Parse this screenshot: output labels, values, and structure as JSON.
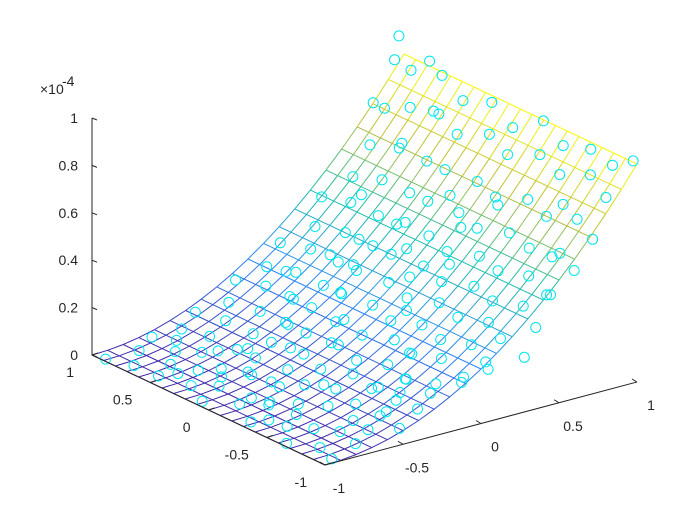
{
  "chart_data": {
    "type": "scatter",
    "subtype": "3d-scatter-with-fitted-mesh-surface",
    "title": "",
    "xlabel": "",
    "ylabel": "",
    "zlabel": "",
    "xlim": [
      -1,
      1
    ],
    "ylim": [
      -1,
      1
    ],
    "zlim": [
      0,
      1
    ],
    "z_exponent_label": "×10",
    "z_exponent_power": "-4",
    "x_ticks": [
      "-1",
      "-0.5",
      "0",
      "0.5",
      "1"
    ],
    "y_ticks": [
      "-1",
      "-0.5",
      "0",
      "0.5",
      "1"
    ],
    "z_ticks": [
      "0",
      "0.2",
      "0.4",
      "0.6",
      "0.8",
      "1"
    ],
    "surface_model": "z ≈ 0.92·((x+1)/2)^2 (×10^-4), nearly independent of y",
    "surface_grid_steps": 20,
    "surface_colormap": "parula",
    "marker": "circle",
    "marker_color": "#00e5ee",
    "grid": false,
    "legend": "none",
    "points": [
      {
        "x": -0.98,
        "y": 0.91,
        "z": 0.0
      },
      {
        "x": -0.94,
        "y": 0.72,
        "z": 0.01
      },
      {
        "x": -0.91,
        "y": 0.55,
        "z": 0.0
      },
      {
        "x": -0.88,
        "y": 0.31,
        "z": 0.01
      },
      {
        "x": -0.95,
        "y": 0.12,
        "z": 0.0
      },
      {
        "x": -0.86,
        "y": -0.08,
        "z": 0.02
      },
      {
        "x": -0.93,
        "y": -0.27,
        "z": 0.0
      },
      {
        "x": -0.84,
        "y": -0.46,
        "z": 0.01
      },
      {
        "x": -0.97,
        "y": -0.63,
        "z": 0.0
      },
      {
        "x": -0.89,
        "y": -0.81,
        "z": 0.01
      },
      {
        "x": -0.92,
        "y": -0.95,
        "z": 0.0
      },
      {
        "x": -0.81,
        "y": 0.85,
        "z": 0.02
      },
      {
        "x": -0.78,
        "y": 0.62,
        "z": 0.01
      },
      {
        "x": -0.76,
        "y": 0.41,
        "z": 0.03
      },
      {
        "x": -0.79,
        "y": 0.19,
        "z": 0.02
      },
      {
        "x": -0.74,
        "y": -0.02,
        "z": 0.01
      },
      {
        "x": -0.77,
        "y": -0.21,
        "z": 0.03
      },
      {
        "x": -0.72,
        "y": -0.38,
        "z": 0.02
      },
      {
        "x": -0.75,
        "y": -0.57,
        "z": 0.01
      },
      {
        "x": -0.71,
        "y": -0.74,
        "z": 0.03
      },
      {
        "x": -0.73,
        "y": -0.9,
        "z": 0.02
      },
      {
        "x": -0.66,
        "y": 0.94,
        "z": 0.03
      },
      {
        "x": -0.63,
        "y": 0.77,
        "z": 0.05
      },
      {
        "x": -0.61,
        "y": 0.58,
        "z": 0.04
      },
      {
        "x": -0.65,
        "y": 0.36,
        "z": 0.03
      },
      {
        "x": -0.62,
        "y": 0.14,
        "z": 0.05
      },
      {
        "x": -0.59,
        "y": -0.06,
        "z": 0.04
      },
      {
        "x": -0.64,
        "y": -0.29,
        "z": 0.03
      },
      {
        "x": -0.6,
        "y": -0.49,
        "z": 0.06
      },
      {
        "x": -0.58,
        "y": -0.68,
        "z": 0.04
      },
      {
        "x": -0.62,
        "y": -0.86,
        "z": 0.05
      },
      {
        "x": -0.53,
        "y": 0.86,
        "z": 0.06
      },
      {
        "x": -0.5,
        "y": 0.66,
        "z": 0.07
      },
      {
        "x": -0.48,
        "y": 0.45,
        "z": 0.06
      },
      {
        "x": -0.52,
        "y": 0.24,
        "z": 0.08
      },
      {
        "x": -0.47,
        "y": 0.03,
        "z": 0.07
      },
      {
        "x": -0.51,
        "y": -0.17,
        "z": 0.06
      },
      {
        "x": -0.46,
        "y": -0.37,
        "z": 0.08
      },
      {
        "x": -0.49,
        "y": -0.58,
        "z": 0.07
      },
      {
        "x": -0.45,
        "y": -0.79,
        "z": 0.08
      },
      {
        "x": -0.5,
        "y": -0.97,
        "z": 0.06
      },
      {
        "x": -0.39,
        "y": 0.93,
        "z": 0.09
      },
      {
        "x": -0.36,
        "y": 0.71,
        "z": 0.1
      },
      {
        "x": -0.34,
        "y": 0.5,
        "z": 0.09
      },
      {
        "x": -0.38,
        "y": 0.29,
        "z": 0.11
      },
      {
        "x": -0.33,
        "y": 0.08,
        "z": 0.1
      },
      {
        "x": -0.37,
        "y": -0.12,
        "z": 0.09
      },
      {
        "x": -0.32,
        "y": -0.33,
        "z": 0.11
      },
      {
        "x": -0.35,
        "y": -0.53,
        "z": 0.1
      },
      {
        "x": -0.31,
        "y": -0.72,
        "z": 0.12
      },
      {
        "x": -0.34,
        "y": -0.91,
        "z": 0.1
      },
      {
        "x": -0.25,
        "y": 0.83,
        "z": 0.13
      },
      {
        "x": -0.22,
        "y": 0.6,
        "z": 0.14
      },
      {
        "x": -0.2,
        "y": 0.39,
        "z": 0.13
      },
      {
        "x": -0.24,
        "y": 0.18,
        "z": 0.15
      },
      {
        "x": -0.19,
        "y": -0.03,
        "z": 0.14
      },
      {
        "x": -0.23,
        "y": -0.24,
        "z": 0.13
      },
      {
        "x": -0.18,
        "y": -0.44,
        "z": 0.15
      },
      {
        "x": -0.21,
        "y": -0.64,
        "z": 0.14
      },
      {
        "x": -0.17,
        "y": -0.84,
        "z": 0.16
      },
      {
        "x": -0.11,
        "y": 0.96,
        "z": 0.17
      },
      {
        "x": -0.08,
        "y": 0.74,
        "z": 0.19
      },
      {
        "x": -0.06,
        "y": 0.53,
        "z": 0.18
      },
      {
        "x": -0.1,
        "y": 0.32,
        "z": 0.2
      },
      {
        "x": -0.05,
        "y": 0.11,
        "z": 0.19
      },
      {
        "x": -0.09,
        "y": -0.1,
        "z": 0.18
      },
      {
        "x": -0.04,
        "y": -0.31,
        "z": 0.2
      },
      {
        "x": -0.07,
        "y": -0.5,
        "z": 0.19
      },
      {
        "x": -0.03,
        "y": -0.7,
        "z": 0.21
      },
      {
        "x": -0.06,
        "y": -0.93,
        "z": 0.19
      },
      {
        "x": 0.03,
        "y": 0.88,
        "z": 0.22
      },
      {
        "x": 0.06,
        "y": 0.67,
        "z": 0.24
      },
      {
        "x": 0.08,
        "y": 0.46,
        "z": 0.23
      },
      {
        "x": 0.04,
        "y": 0.25,
        "z": 0.25
      },
      {
        "x": 0.09,
        "y": 0.05,
        "z": 0.24
      },
      {
        "x": 0.05,
        "y": -0.16,
        "z": 0.23
      },
      {
        "x": 0.1,
        "y": -0.36,
        "z": 0.25
      },
      {
        "x": 0.07,
        "y": -0.56,
        "z": 0.24
      },
      {
        "x": 0.11,
        "y": -0.77,
        "z": 0.26
      },
      {
        "x": 0.06,
        "y": -0.96,
        "z": 0.24
      },
      {
        "x": 0.17,
        "y": 0.95,
        "z": 0.28
      },
      {
        "x": 0.2,
        "y": 0.73,
        "z": 0.3
      },
      {
        "x": 0.22,
        "y": 0.52,
        "z": 0.29
      },
      {
        "x": 0.18,
        "y": 0.31,
        "z": 0.31
      },
      {
        "x": 0.23,
        "y": 0.1,
        "z": 0.3
      },
      {
        "x": 0.19,
        "y": -0.11,
        "z": 0.29
      },
      {
        "x": 0.24,
        "y": -0.32,
        "z": 0.31
      },
      {
        "x": 0.21,
        "y": -0.52,
        "z": 0.3
      },
      {
        "x": 0.25,
        "y": -0.73,
        "z": 0.32
      },
      {
        "x": 0.2,
        "y": -0.9,
        "z": 0.3
      },
      {
        "x": 0.31,
        "y": 0.84,
        "z": 0.35
      },
      {
        "x": 0.34,
        "y": 0.62,
        "z": 0.37
      },
      {
        "x": 0.36,
        "y": 0.41,
        "z": 0.36
      },
      {
        "x": 0.32,
        "y": 0.2,
        "z": 0.38
      },
      {
        "x": 0.37,
        "y": -0.01,
        "z": 0.37
      },
      {
        "x": 0.33,
        "y": -0.22,
        "z": 0.36
      },
      {
        "x": 0.38,
        "y": -0.43,
        "z": 0.38
      },
      {
        "x": 0.35,
        "y": -0.63,
        "z": 0.37
      },
      {
        "x": 0.39,
        "y": -0.84,
        "z": 0.39
      },
      {
        "x": 0.45,
        "y": 0.97,
        "z": 0.42
      },
      {
        "x": 0.48,
        "y": 0.76,
        "z": 0.44
      },
      {
        "x": 0.5,
        "y": 0.55,
        "z": 0.43
      },
      {
        "x": 0.46,
        "y": 0.34,
        "z": 0.45
      },
      {
        "x": 0.51,
        "y": 0.13,
        "z": 0.44
      },
      {
        "x": 0.47,
        "y": -0.08,
        "z": 0.43
      },
      {
        "x": 0.52,
        "y": -0.29,
        "z": 0.45
      },
      {
        "x": 0.49,
        "y": -0.49,
        "z": 0.44
      },
      {
        "x": 0.53,
        "y": -0.7,
        "z": 0.46
      },
      {
        "x": 0.48,
        "y": -0.92,
        "z": 0.44
      },
      {
        "x": 0.59,
        "y": 0.89,
        "z": 0.5
      },
      {
        "x": 0.62,
        "y": 0.68,
        "z": 0.53
      },
      {
        "x": 0.64,
        "y": 0.47,
        "z": 0.52
      },
      {
        "x": 0.6,
        "y": 0.26,
        "z": 0.54
      },
      {
        "x": 0.65,
        "y": 0.06,
        "z": 0.53
      },
      {
        "x": 0.61,
        "y": -0.15,
        "z": 0.52
      },
      {
        "x": 0.66,
        "y": -0.36,
        "z": 0.54
      },
      {
        "x": 0.63,
        "y": -0.57,
        "z": 0.53
      },
      {
        "x": 0.67,
        "y": -0.78,
        "z": 0.55
      },
      {
        "x": 0.62,
        "y": -0.97,
        "z": 0.53
      },
      {
        "x": 0.73,
        "y": 0.93,
        "z": 0.6
      },
      {
        "x": 0.76,
        "y": 0.72,
        "z": 0.63
      },
      {
        "x": 0.78,
        "y": 0.51,
        "z": 0.62
      },
      {
        "x": 0.74,
        "y": 0.3,
        "z": 0.64
      },
      {
        "x": 0.79,
        "y": 0.09,
        "z": 0.63
      },
      {
        "x": 0.75,
        "y": -0.12,
        "z": 0.62
      },
      {
        "x": 0.8,
        "y": -0.33,
        "z": 0.65
      },
      {
        "x": 0.77,
        "y": -0.53,
        "z": 0.63
      },
      {
        "x": 0.81,
        "y": -0.74,
        "z": 0.66
      },
      {
        "x": 0.76,
        "y": -0.94,
        "z": 0.63
      },
      {
        "x": 0.86,
        "y": 0.98,
        "z": 0.72
      },
      {
        "x": 0.89,
        "y": 0.8,
        "z": 0.76
      },
      {
        "x": 0.91,
        "y": 0.58,
        "z": 0.78
      },
      {
        "x": 0.87,
        "y": 0.37,
        "z": 0.75
      },
      {
        "x": 0.92,
        "y": 0.16,
        "z": 0.79
      },
      {
        "x": 0.88,
        "y": -0.05,
        "z": 0.76
      },
      {
        "x": 0.93,
        "y": -0.26,
        "z": 0.8
      },
      {
        "x": 0.9,
        "y": -0.47,
        "z": 0.77
      },
      {
        "x": 0.94,
        "y": -0.68,
        "z": 0.81
      },
      {
        "x": 0.89,
        "y": -0.88,
        "z": 0.77
      },
      {
        "x": 0.97,
        "y": 0.9,
        "z": 0.88
      },
      {
        "x": 0.99,
        "y": 0.66,
        "z": 0.91
      },
      {
        "x": 0.96,
        "y": 0.44,
        "z": 0.86
      },
      {
        "x": 0.98,
        "y": 0.22,
        "z": 0.9
      },
      {
        "x": 0.95,
        "y": 0.0,
        "z": 0.85
      },
      {
        "x": 0.99,
        "y": -0.21,
        "z": 0.92
      },
      {
        "x": 0.96,
        "y": -0.42,
        "z": 0.87
      },
      {
        "x": 0.98,
        "y": -0.63,
        "z": 0.9
      },
      {
        "x": 0.97,
        "y": -0.83,
        "z": 0.88
      },
      {
        "x": 0.99,
        "y": -0.98,
        "z": 0.93
      },
      {
        "x": 0.93,
        "y": 0.95,
        "z": 1.02
      },
      {
        "x": 0.85,
        "y": 0.88,
        "z": 0.95
      },
      {
        "x": 0.78,
        "y": 0.97,
        "z": 0.76
      },
      {
        "x": 0.94,
        "y": 0.7,
        "z": 0.97
      },
      {
        "x": 0.83,
        "y": 0.52,
        "z": 0.82
      },
      {
        "x": 0.71,
        "y": 0.63,
        "z": 0.68
      },
      {
        "x": 0.57,
        "y": 0.79,
        "z": 0.45
      },
      {
        "x": 0.42,
        "y": 0.61,
        "z": 0.33
      },
      {
        "x": 0.28,
        "y": 0.47,
        "z": 0.28
      },
      {
        "x": 0.13,
        "y": 0.38,
        "z": 0.21
      },
      {
        "x": -0.02,
        "y": 0.22,
        "z": 0.15
      },
      {
        "x": -0.16,
        "y": 0.07,
        "z": 0.12
      },
      {
        "x": 0.69,
        "y": -0.22,
        "z": 0.62
      },
      {
        "x": 0.55,
        "y": -0.09,
        "z": 0.52
      },
      {
        "x": 0.41,
        "y": -0.18,
        "z": 0.41
      },
      {
        "x": 0.26,
        "y": -0.04,
        "z": 0.35
      },
      {
        "x": 0.12,
        "y": -0.2,
        "z": 0.27
      },
      {
        "x": -0.01,
        "y": -0.4,
        "z": 0.16
      },
      {
        "x": -0.15,
        "y": -0.55,
        "z": 0.11
      },
      {
        "x": -0.29,
        "y": -0.66,
        "z": 0.07
      },
      {
        "x": -0.43,
        "y": -0.71,
        "z": 0.04
      },
      {
        "x": 0.84,
        "y": -0.58,
        "z": 0.68
      },
      {
        "x": 0.71,
        "y": -0.66,
        "z": 0.5
      },
      {
        "x": 0.58,
        "y": -0.82,
        "z": 0.4
      },
      {
        "x": 0.44,
        "y": -0.88,
        "z": 0.3
      },
      {
        "x": 0.3,
        "y": -0.97,
        "z": 0.22
      },
      {
        "x": 0.15,
        "y": -0.86,
        "z": 0.17
      },
      {
        "x": 0.01,
        "y": -0.82,
        "z": 0.13
      },
      {
        "x": -0.13,
        "y": -0.74,
        "z": 0.09
      },
      {
        "x": -0.27,
        "y": -0.48,
        "z": 0.08
      },
      {
        "x": -0.41,
        "y": -0.2,
        "z": 0.05
      },
      {
        "x": -0.56,
        "y": 0.05,
        "z": 0.03
      },
      {
        "x": -0.7,
        "y": 0.29,
        "z": 0.02
      },
      {
        "x": -0.83,
        "y": 0.49,
        "z": 0.01
      },
      {
        "x": -0.69,
        "y": 0.7,
        "z": 0.03
      },
      {
        "x": -0.55,
        "y": 0.52,
        "z": 0.05
      },
      {
        "x": 0.66,
        "y": 0.15,
        "z": 0.58
      },
      {
        "x": 0.53,
        "y": 0.36,
        "z": 0.44
      },
      {
        "x": 0.39,
        "y": 0.16,
        "z": 0.4
      },
      {
        "x": 0.25,
        "y": 0.63,
        "z": 0.29
      },
      {
        "x": 0.11,
        "y": 0.82,
        "z": 0.2
      },
      {
        "x": -0.03,
        "y": 0.6,
        "z": 0.17
      },
      {
        "x": -0.17,
        "y": 0.45,
        "z": 0.12
      },
      {
        "x": -0.31,
        "y": 0.22,
        "z": 0.09
      },
      {
        "x": -0.45,
        "y": 0.4,
        "z": 0.07
      },
      {
        "x": -0.59,
        "y": 0.21,
        "z": 0.04
      },
      {
        "x": -0.72,
        "y": -0.15,
        "z": 0.02
      },
      {
        "x": -0.86,
        "y": -0.33,
        "z": 0.01
      }
    ]
  }
}
